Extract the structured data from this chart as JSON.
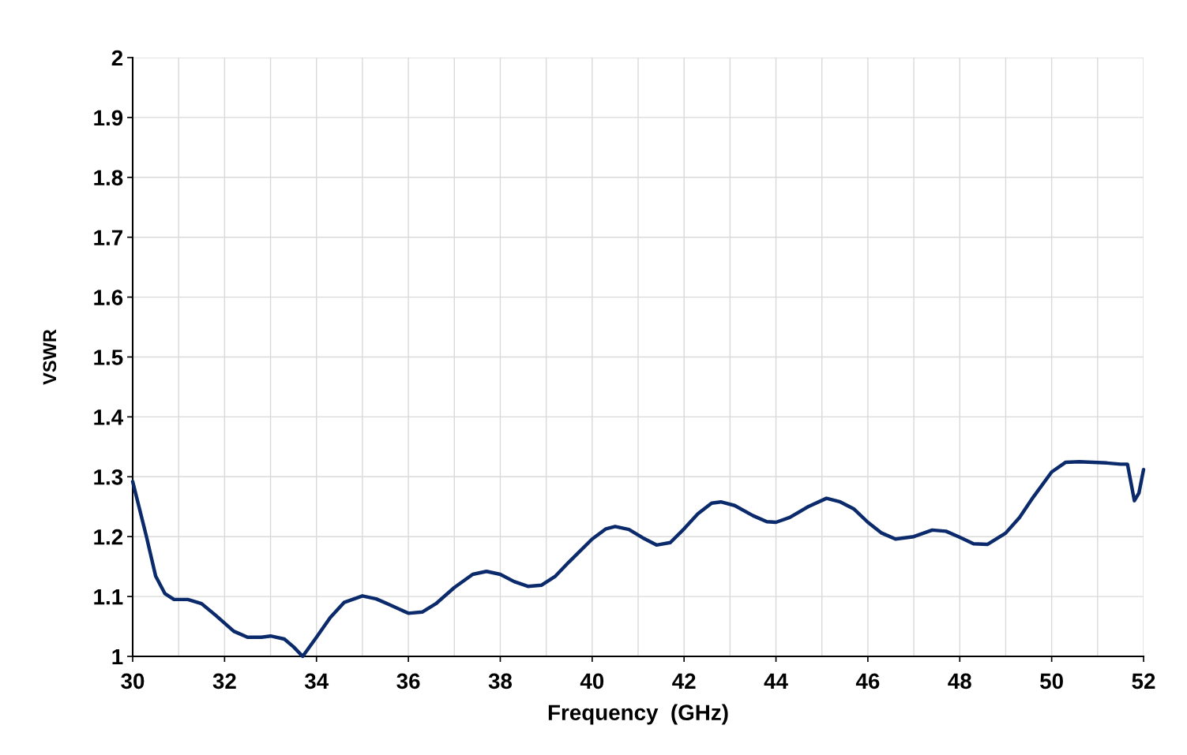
{
  "chart_data": {
    "type": "line",
    "xlabel": "Frequency  (GHz)",
    "ylabel": "VSWR",
    "xlim": [
      30,
      52
    ],
    "xticks": [
      30,
      32,
      34,
      36,
      38,
      40,
      42,
      44,
      46,
      48,
      50,
      52
    ],
    "ylim": [
      1,
      2
    ],
    "yticks": [
      1,
      {
        "value": 1.1,
        "label": "1.1"
      },
      {
        "value": 1.2,
        "label": "1.2"
      },
      {
        "value": 1.3,
        "label": "1.3"
      },
      {
        "value": 1.4,
        "label": "1.4"
      },
      {
        "value": 1.5,
        "label": "1.5"
      },
      {
        "value": 1.6,
        "label": "1.6"
      },
      {
        "value": 1.7,
        "label": "1.7"
      },
      {
        "value": 1.8,
        "label": "1.8"
      },
      {
        "value": 1.9,
        "label": "1.9"
      },
      2
    ],
    "grid": true,
    "marker": "none",
    "line_style": "solid",
    "series": [
      {
        "color": "#0b2a6b",
        "x": [
          30,
          30.3,
          30.5,
          30.7,
          30.9,
          31.2,
          31.5,
          31.8,
          32.2,
          32.5,
          32.8,
          33.0,
          33.3,
          33.5,
          33.7,
          34.0,
          34.3,
          34.6,
          35.0,
          35.3,
          35.6,
          36.0,
          36.3,
          36.6,
          37.0,
          37.4,
          37.7,
          38.0,
          38.3,
          38.6,
          38.9,
          39.2,
          39.5,
          40.0,
          40.3,
          40.5,
          40.8,
          41.1,
          41.4,
          41.7,
          42.0,
          42.3,
          42.6,
          42.8,
          43.1,
          43.5,
          43.8,
          44.0,
          44.3,
          44.7,
          45.1,
          45.4,
          45.7,
          46.0,
          46.3,
          46.6,
          47.0,
          47.4,
          47.7,
          48.0,
          48.3,
          48.6,
          49.0,
          49.3,
          49.6,
          50.0,
          50.3,
          50.6,
          50.9,
          51.2,
          51.5,
          51.65,
          51.8,
          51.9,
          52.0
        ],
        "values": [
          1.292,
          1.2,
          1.134,
          1.105,
          1.095,
          1.095,
          1.088,
          1.069,
          1.042,
          1.032,
          1.032,
          1.034,
          1.029,
          1.016,
          1.0,
          1.032,
          1.065,
          1.09,
          1.101,
          1.096,
          1.086,
          1.072,
          1.074,
          1.088,
          1.115,
          1.137,
          1.142,
          1.137,
          1.125,
          1.117,
          1.119,
          1.134,
          1.158,
          1.196,
          1.213,
          1.217,
          1.212,
          1.198,
          1.186,
          1.19,
          1.213,
          1.238,
          1.256,
          1.258,
          1.252,
          1.235,
          1.225,
          1.224,
          1.232,
          1.25,
          1.264,
          1.258,
          1.246,
          1.224,
          1.206,
          1.196,
          1.2,
          1.211,
          1.209,
          1.199,
          1.188,
          1.187,
          1.206,
          1.232,
          1.266,
          1.308,
          1.324,
          1.325,
          1.324,
          1.323,
          1.321,
          1.321,
          1.26,
          1.273,
          1.312
        ]
      }
    ]
  }
}
